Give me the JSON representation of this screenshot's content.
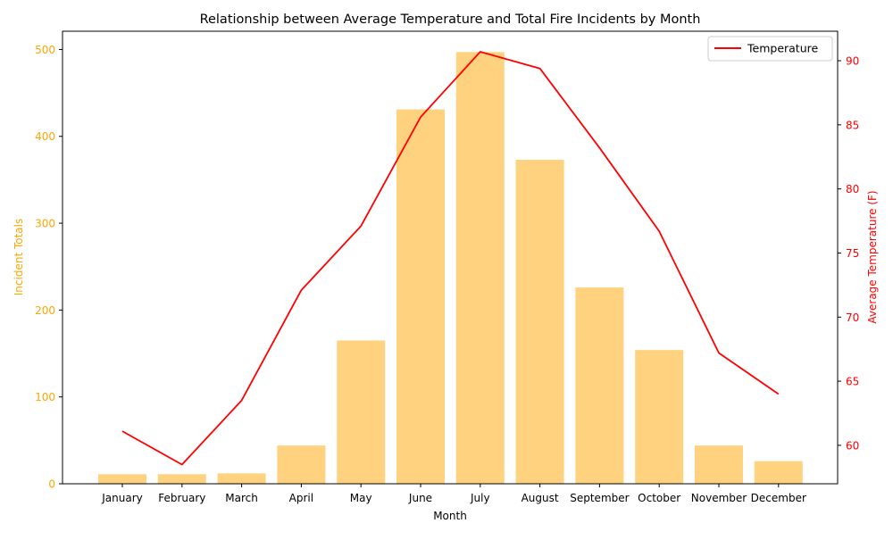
{
  "chart_data": {
    "type": "bar",
    "title": "Relationship between Average Temperature and Total Fire Incidents by Month",
    "xlabel": "Month",
    "categories": [
      "January",
      "February",
      "March",
      "April",
      "May",
      "June",
      "July",
      "August",
      "September",
      "October",
      "November",
      "December"
    ],
    "bars": {
      "ylabel": "Incident Totals",
      "color": "#FFA500",
      "opacity": 0.5,
      "values": [
        11,
        11,
        12,
        44,
        165,
        431,
        497,
        373,
        226,
        154,
        44,
        26
      ],
      "ylim": [
        0,
        521
      ],
      "ticks": [
        0,
        100,
        200,
        300,
        400,
        500
      ]
    },
    "line": {
      "name": "Temperature",
      "ylabel": "Average Temperature (F)",
      "color": "#FF0000",
      "values": [
        61.1,
        58.5,
        63.5,
        72.1,
        77.1,
        85.6,
        90.7,
        89.4,
        83.2,
        76.7,
        67.2,
        64.0
      ],
      "ylim": [
        57.0,
        92.3
      ],
      "ticks": [
        60,
        65,
        70,
        75,
        80,
        85,
        90
      ]
    },
    "legend": {
      "placement": "top-right",
      "entries": [
        "Temperature"
      ]
    },
    "grid": false
  }
}
